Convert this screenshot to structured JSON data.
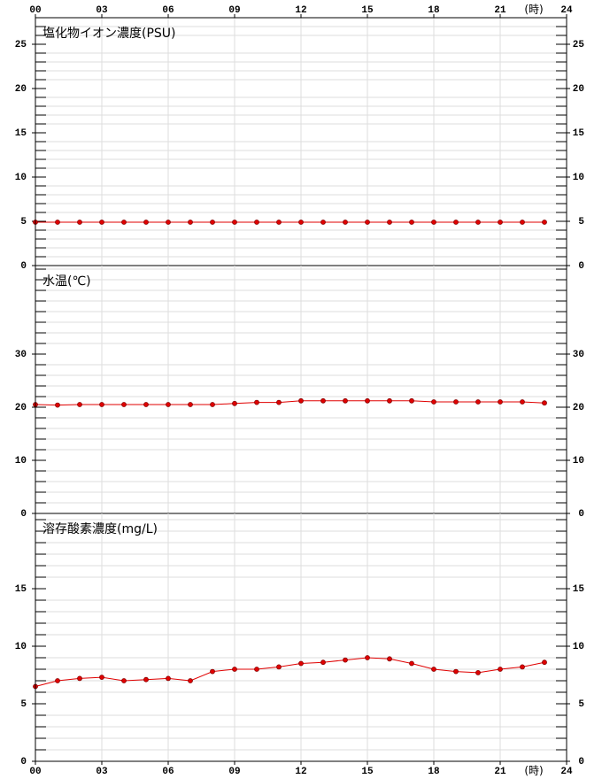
{
  "time_axis": {
    "xlim": [
      0,
      24
    ],
    "xticks": [
      {
        "value": 0,
        "label": "00"
      },
      {
        "value": 3,
        "label": "03"
      },
      {
        "value": 6,
        "label": "06"
      },
      {
        "value": 9,
        "label": "09"
      },
      12,
      15,
      18,
      21,
      24
    ],
    "unit": "(時)"
  },
  "chart_data": [
    {
      "type": "line",
      "title": "塩化物イオン濃度(PSU)",
      "color": "#e00000",
      "grid": true,
      "x": [
        0,
        1,
        2,
        3,
        4,
        5,
        6,
        7,
        8,
        9,
        10,
        11,
        12,
        13,
        14,
        15,
        16,
        17,
        18,
        19,
        20,
        21,
        22,
        23
      ],
      "values": [
        4.9,
        4.9,
        4.9,
        4.9,
        4.9,
        4.9,
        4.9,
        4.9,
        4.9,
        4.9,
        4.9,
        4.9,
        4.9,
        4.9,
        4.9,
        4.9,
        4.9,
        4.9,
        4.9,
        4.9,
        4.9,
        4.9,
        4.9,
        4.9
      ],
      "ylim": [
        0,
        28
      ],
      "yticks": [
        0,
        5,
        10,
        15,
        20,
        25
      ],
      "minor_yticks": [
        1,
        2,
        3,
        4,
        6,
        7,
        8,
        9,
        11,
        12,
        13,
        14,
        16,
        17,
        18,
        19,
        21,
        22,
        23,
        24,
        26,
        27
      ]
    },
    {
      "type": "line",
      "title": "水温(℃)",
      "color": "#e00000",
      "grid": true,
      "x": [
        0,
        1,
        2,
        3,
        4,
        5,
        6,
        7,
        8,
        9,
        10,
        11,
        12,
        13,
        14,
        15,
        16,
        17,
        18,
        19,
        20,
        21,
        22,
        23
      ],
      "values": [
        20.5,
        20.4,
        20.5,
        20.5,
        20.5,
        20.5,
        20.5,
        20.5,
        20.5,
        20.7,
        20.9,
        20.9,
        21.2,
        21.2,
        21.2,
        21.2,
        21.2,
        21.2,
        21.0,
        21.0,
        21.0,
        21.0,
        21.0,
        20.8
      ],
      "ylim": [
        0,
        46.67
      ],
      "yticks": [
        0,
        10,
        20,
        30
      ],
      "minor_yticks": [
        2,
        4,
        6,
        8,
        12,
        14,
        16,
        18,
        22,
        24,
        26,
        28,
        32,
        34,
        36,
        38,
        40,
        42,
        44,
        46
      ]
    },
    {
      "type": "line",
      "title": "溶存酸素濃度(mg/L)",
      "color": "#e00000",
      "grid": true,
      "x": [
        0,
        1,
        2,
        3,
        4,
        5,
        6,
        7,
        8,
        9,
        10,
        11,
        12,
        13,
        14,
        15,
        16,
        17,
        18,
        19,
        20,
        21,
        22,
        23
      ],
      "values": [
        6.5,
        7.0,
        7.2,
        7.3,
        7.0,
        7.1,
        7.2,
        7.0,
        7.8,
        8.0,
        8.0,
        8.2,
        8.5,
        8.6,
        8.8,
        9.0,
        8.9,
        8.5,
        8.0,
        7.8,
        7.7,
        8.0,
        8.2,
        8.6
      ],
      "ylim": [
        0,
        21.54
      ],
      "yticks": [
        0,
        5,
        10,
        15
      ],
      "minor_yticks": [
        1,
        2,
        3,
        4,
        6,
        7,
        8,
        9,
        11,
        12,
        13,
        14,
        16,
        17,
        18,
        19,
        20,
        21
      ]
    }
  ]
}
